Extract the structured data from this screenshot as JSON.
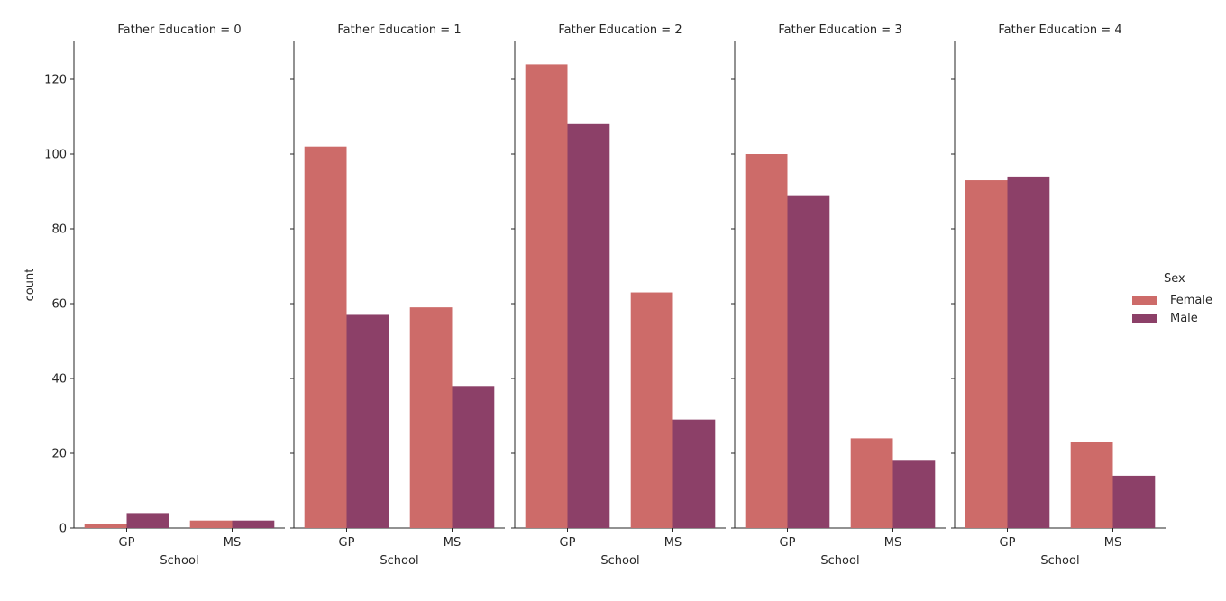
{
  "chart_data": {
    "type": "bar",
    "facet_label": "Father Education",
    "facets": [
      {
        "title": "Father Education = 0",
        "categories": [
          "GP",
          "MS"
        ],
        "series": [
          {
            "name": "Female",
            "values": [
              1,
              2
            ]
          },
          {
            "name": "Male",
            "values": [
              4,
              2
            ]
          }
        ]
      },
      {
        "title": "Father Education = 1",
        "categories": [
          "GP",
          "MS"
        ],
        "series": [
          {
            "name": "Female",
            "values": [
              102,
              59
            ]
          },
          {
            "name": "Male",
            "values": [
              57,
              38
            ]
          }
        ]
      },
      {
        "title": "Father Education = 2",
        "categories": [
          "GP",
          "MS"
        ],
        "series": [
          {
            "name": "Female",
            "values": [
              124,
              63
            ]
          },
          {
            "name": "Male",
            "values": [
              108,
              29
            ]
          }
        ]
      },
      {
        "title": "Father Education = 3",
        "categories": [
          "GP",
          "MS"
        ],
        "series": [
          {
            "name": "Female",
            "values": [
              100,
              24
            ]
          },
          {
            "name": "Male",
            "values": [
              89,
              18
            ]
          }
        ]
      },
      {
        "title": "Father Education = 4",
        "categories": [
          "GP",
          "MS"
        ],
        "series": [
          {
            "name": "Female",
            "values": [
              93,
              23
            ]
          },
          {
            "name": "Male",
            "values": [
              94,
              14
            ]
          }
        ]
      }
    ],
    "xlabel": "School",
    "ylabel": "count",
    "ylim": [
      0,
      130
    ],
    "yticks": [
      0,
      20,
      40,
      60,
      80,
      100,
      120
    ],
    "grid": false,
    "legend": {
      "title": "Sex",
      "placement": "right",
      "entries": [
        "Female",
        "Male"
      ]
    },
    "colors": {
      "Female": "#cd6b69",
      "Male": "#8c4068"
    }
  }
}
